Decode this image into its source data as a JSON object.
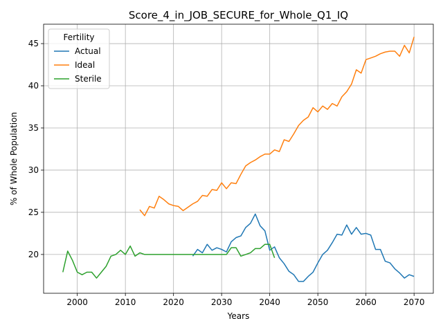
{
  "chart_data": {
    "type": "line",
    "title": "Score_4_in_JOB_SECURE_for_Whole_Q1_IQ",
    "xlabel": "Years",
    "ylabel": "% of Whole Population",
    "xlim": [
      1993,
      2074
    ],
    "ylim": [
      15.4,
      47.3
    ],
    "xticks": [
      2000,
      2010,
      2020,
      2030,
      2040,
      2050,
      2060,
      2070
    ],
    "yticks": [
      20,
      25,
      30,
      35,
      40,
      45
    ],
    "grid": true,
    "legend": {
      "title": "Fertility",
      "placement": "top-left"
    },
    "series": [
      {
        "name": "Actual",
        "color": "#1f77b4",
        "x": [
          2024,
          2025,
          2026,
          2027,
          2028,
          2029,
          2030,
          2031,
          2032,
          2033,
          2034,
          2035,
          2036,
          2037,
          2038,
          2039,
          2040,
          2041,
          2042,
          2043,
          2044,
          2045,
          2046,
          2047,
          2048,
          2049,
          2050,
          2051,
          2052,
          2053,
          2054,
          2055,
          2056,
          2057,
          2058,
          2059,
          2060,
          2061,
          2062,
          2063,
          2064,
          2065,
          2066,
          2067,
          2068,
          2069,
          2070
        ],
        "values": [
          19.8,
          20.6,
          20.2,
          21.2,
          20.5,
          20.8,
          20.6,
          20.3,
          21.5,
          22.0,
          22.2,
          23.2,
          23.7,
          24.8,
          23.4,
          22.8,
          20.5,
          20.9,
          19.6,
          18.9,
          18.0,
          17.6,
          16.8,
          16.8,
          17.4,
          17.9,
          19.0,
          20.0,
          20.5,
          21.4,
          22.4,
          22.3,
          23.5,
          22.4,
          23.2,
          22.4,
          22.5,
          22.3,
          20.6,
          20.6,
          19.2,
          19.0,
          18.3,
          17.8,
          17.2,
          17.6,
          17.4
        ]
      },
      {
        "name": "Ideal",
        "color": "#ff7f0e",
        "x": [
          2013,
          2014,
          2015,
          2016,
          2017,
          2018,
          2019,
          2020,
          2021,
          2022,
          2023,
          2024,
          2025,
          2026,
          2027,
          2028,
          2029,
          2030,
          2031,
          2032,
          2033,
          2034,
          2035,
          2036,
          2037,
          2038,
          2039,
          2040,
          2041,
          2042,
          2043,
          2044,
          2045,
          2046,
          2047,
          2048,
          2049,
          2050,
          2051,
          2052,
          2053,
          2054,
          2055,
          2056,
          2057,
          2058,
          2059,
          2060,
          2061,
          2062,
          2063,
          2064,
          2065,
          2066,
          2067,
          2068,
          2069,
          2070
        ],
        "values": [
          25.3,
          24.6,
          25.7,
          25.5,
          26.9,
          26.5,
          26.0,
          25.8,
          25.7,
          25.2,
          25.6,
          26.0,
          26.3,
          27.0,
          26.9,
          27.7,
          27.6,
          28.5,
          27.8,
          28.5,
          28.4,
          29.5,
          30.5,
          30.9,
          31.2,
          31.6,
          31.9,
          31.9,
          32.4,
          32.2,
          33.6,
          33.4,
          34.3,
          35.3,
          35.9,
          36.3,
          37.4,
          36.9,
          37.6,
          37.2,
          37.9,
          37.6,
          38.7,
          39.3,
          40.2,
          41.9,
          41.5,
          43.1,
          43.3,
          43.5,
          43.8,
          44.0,
          44.1,
          44.1,
          43.5,
          44.8,
          43.9,
          45.8
        ]
      },
      {
        "name": "Sterile",
        "color": "#2ca02c",
        "x": [
          1997,
          1998,
          1999,
          2000,
          2001,
          2002,
          2003,
          2004,
          2005,
          2006,
          2007,
          2008,
          2009,
          2010,
          2011,
          2012,
          2013,
          2014,
          2015,
          2016,
          2017,
          2018,
          2019,
          2020,
          2021,
          2022,
          2023,
          2024,
          2025,
          2026,
          2027,
          2028,
          2029,
          2030,
          2031,
          2032,
          2033,
          2034,
          2035,
          2036,
          2037,
          2038,
          2039,
          2040,
          2041
        ],
        "values": [
          17.9,
          20.4,
          19.3,
          17.9,
          17.6,
          17.9,
          17.9,
          17.2,
          17.9,
          18.6,
          19.8,
          20.0,
          20.5,
          20.0,
          21.0,
          19.8,
          20.2,
          20.0,
          20.0,
          20.0,
          20.0,
          20.0,
          20.0,
          20.0,
          20.0,
          20.0,
          20.0,
          20.0,
          20.0,
          20.0,
          20.0,
          20.0,
          20.0,
          20.0,
          20.0,
          20.8,
          20.8,
          19.8,
          20.0,
          20.2,
          20.7,
          20.7,
          21.2,
          21.2,
          19.6
        ]
      }
    ]
  }
}
